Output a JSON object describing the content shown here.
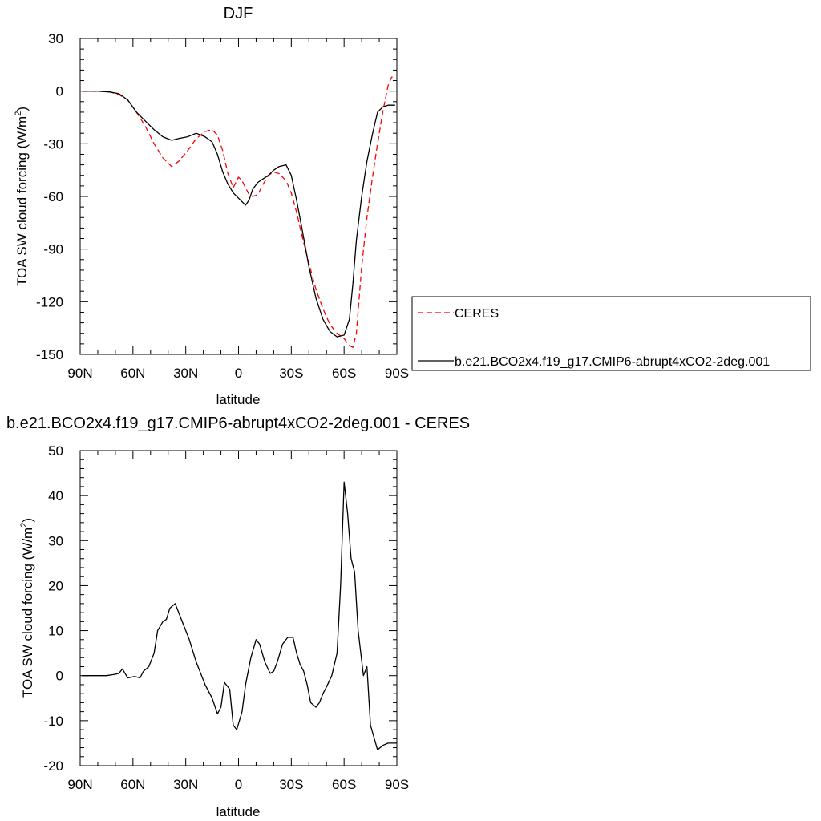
{
  "figure": {
    "plots": [
      {
        "title": "DJF",
        "xlabel": "latitude",
        "ylabel_main": "TOA SW cloud forcing (W/m",
        "ylabel_sup": "2",
        "ylabel_close": ")"
      },
      {
        "title": "b.e21.BCO2x4.f19_g17.CMIP6-abrupt4xCO2-2deg.001 - CERES",
        "xlabel": "latitude",
        "ylabel_main": "TOA SW cloud forcing (W/m",
        "ylabel_sup": "2",
        "ylabel_close": ")"
      }
    ],
    "legend": [
      {
        "label": "CERES",
        "color": "#ff0000",
        "dash": "dashed"
      },
      {
        "label": "b.e21.BCO2x4.f19_g17.CMIP6-abrupt4xCO2-2deg.001",
        "color": "#000000",
        "dash": "solid"
      }
    ]
  },
  "chart_data": [
    {
      "type": "line",
      "title": "DJF",
      "xlabel": "latitude",
      "ylabel": "TOA SW cloud forcing (W/m2)",
      "xlim": [
        -90,
        90
      ],
      "ylim": [
        -150,
        30
      ],
      "xticks": [
        -90,
        -60,
        -30,
        0,
        30,
        60,
        90
      ],
      "xticklabels": [
        "90N",
        "60N",
        "30N",
        "0",
        "30S",
        "60S",
        "90S"
      ],
      "yticks": [
        30,
        0,
        -30,
        -60,
        -90,
        -120,
        -150
      ],
      "yticklabels": [
        "30",
        "0",
        "-30",
        "-60",
        "-90",
        "-120",
        "-150"
      ],
      "legend_position": "right",
      "series": [
        {
          "name": "CERES",
          "color": "#ff0000",
          "style": "dashed",
          "x": [
            -89,
            -80,
            -73,
            -68,
            -63,
            -58,
            -53,
            -48,
            -43,
            -38,
            -34,
            -29,
            -24,
            -19,
            -15,
            -12,
            -9,
            -6,
            -3,
            0,
            2,
            4,
            6,
            8,
            11,
            14,
            17,
            20,
            23,
            27,
            30,
            33,
            36,
            40,
            44,
            48,
            52,
            56,
            60,
            63,
            65,
            67,
            70,
            73,
            76,
            79,
            82,
            85,
            87,
            89
          ],
          "y": [
            0,
            0,
            -0.5,
            -2,
            -5,
            -12,
            -20,
            -30,
            -38,
            -43,
            -40,
            -34,
            -27,
            -23,
            -22,
            -25,
            -34,
            -47,
            -55,
            -49,
            -51,
            -55,
            -59,
            -60,
            -59,
            -53,
            -48,
            -46,
            -47,
            -51,
            -58,
            -69,
            -82,
            -98,
            -113,
            -124,
            -133,
            -138,
            -141,
            -145,
            -146,
            -138,
            -100,
            -72,
            -50,
            -30,
            -12,
            3,
            8,
            8
          ]
        },
        {
          "name": "b.e21.BCO2x4.f19_g17.CMIP6-abrupt4xCO2-2deg.001",
          "color": "#000000",
          "style": "solid",
          "x": [
            -89,
            -80,
            -73,
            -68,
            -63,
            -58,
            -53,
            -48,
            -43,
            -38,
            -34,
            -29,
            -24,
            -19,
            -15,
            -12,
            -9,
            -6,
            -3,
            0,
            2,
            4,
            6,
            8,
            11,
            14,
            17,
            20,
            23,
            27,
            30,
            33,
            36,
            40,
            44,
            48,
            52,
            56,
            60,
            63,
            65,
            67,
            70,
            73,
            76,
            79,
            82,
            85,
            87,
            89
          ],
          "y": [
            0,
            0,
            -0.5,
            -1.5,
            -5,
            -12,
            -17,
            -22,
            -26,
            -28,
            -27,
            -26,
            -24,
            -26,
            -29,
            -36,
            -46,
            -53,
            -58,
            -61,
            -63,
            -65,
            -62,
            -56,
            -52,
            -50,
            -48,
            -45,
            -43,
            -42,
            -48,
            -62,
            -78,
            -100,
            -118,
            -130,
            -137,
            -140,
            -139,
            -130,
            -110,
            -85,
            -60,
            -40,
            -25,
            -12,
            -9,
            -8,
            -8,
            -8
          ]
        }
      ]
    },
    {
      "type": "line",
      "title": "b.e21.BCO2x4.f19_g17.CMIP6-abrupt4xCO2-2deg.001 - CERES",
      "xlabel": "latitude",
      "ylabel": "TOA SW cloud forcing (W/m2)",
      "xlim": [
        -90,
        90
      ],
      "ylim": [
        -20,
        50
      ],
      "xticks": [
        -90,
        -60,
        -30,
        0,
        30,
        60,
        90
      ],
      "xticklabels": [
        "90N",
        "60N",
        "30N",
        "0",
        "30S",
        "60S",
        "90S"
      ],
      "yticks": [
        50,
        40,
        30,
        20,
        10,
        0,
        -10,
        -20
      ],
      "yticklabels": [
        "50",
        "40",
        "30",
        "20",
        "10",
        "0",
        "-10",
        "-20"
      ],
      "series": [
        {
          "color": "#000000",
          "style": "solid",
          "x": [
            -89,
            -75,
            -70,
            -68,
            -66,
            -63,
            -59,
            -56,
            -54,
            -51,
            -48,
            -46,
            -43,
            -41,
            -39,
            -36,
            -34,
            -31,
            -28,
            -24,
            -19,
            -15,
            -12,
            -10,
            -8,
            -5,
            -3,
            -1,
            2,
            4,
            7,
            10,
            12,
            15,
            18,
            20,
            22,
            25,
            28,
            31,
            33,
            35,
            37,
            39,
            41,
            44,
            46,
            48,
            50,
            53,
            56,
            58,
            60,
            62,
            64,
            66,
            68,
            71,
            73,
            75,
            79,
            82,
            85,
            88,
            90
          ],
          "y": [
            0,
            0,
            0.3,
            0.5,
            1.5,
            -0.5,
            -0.2,
            -0.5,
            1,
            2,
            5,
            10,
            12,
            12.5,
            15,
            16,
            14,
            11,
            8,
            3,
            -2,
            -5,
            -8.5,
            -7,
            -1.5,
            -3,
            -11,
            -12,
            -8,
            -2,
            4,
            8,
            7,
            3,
            0.5,
            1,
            3,
            7,
            8.5,
            8.5,
            5,
            2.5,
            1,
            -2,
            -6,
            -7,
            -6,
            -4,
            -2.5,
            0,
            5,
            20,
            43,
            36,
            26,
            23,
            10,
            0,
            2,
            -11,
            -16.5,
            -15.5,
            -15,
            -15,
            -15
          ]
        }
      ]
    }
  ]
}
